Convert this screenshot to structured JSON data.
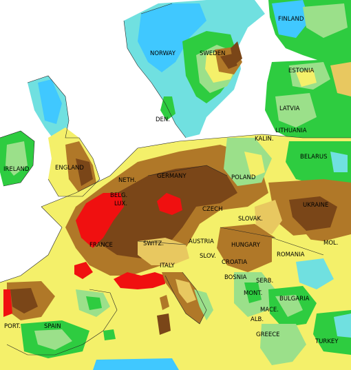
{
  "map": {
    "type": "anomaly-contour-map",
    "region": "Europe",
    "colors": {
      "sea": "#ffffff",
      "extreme_dry": "#f01010",
      "very_dry": "#7a4618",
      "dry": "#b07828",
      "slightly_dry": "#e8c860",
      "near_normal": "#f4f06a",
      "slightly_wet": "#9be08a",
      "wet": "#2ecc40",
      "very_wet": "#70e0e0",
      "extreme_wet": "#40c8ff"
    },
    "labels": [
      {
        "id": "finland",
        "text": "FINLAND"
      },
      {
        "id": "norway",
        "text": "NORWAY"
      },
      {
        "id": "sweden",
        "text": "SWEDEN"
      },
      {
        "id": "estonia",
        "text": "ESTONIA"
      },
      {
        "id": "latvia",
        "text": "LATVIA"
      },
      {
        "id": "lithuania",
        "text": "LITHUANIA"
      },
      {
        "id": "den",
        "text": "DEN."
      },
      {
        "id": "kalin",
        "text": "KALIN."
      },
      {
        "id": "belarus",
        "text": "BELARUS"
      },
      {
        "id": "ireland",
        "text": "IRELAND"
      },
      {
        "id": "england",
        "text": "ENGLAND"
      },
      {
        "id": "neth",
        "text": "NETH."
      },
      {
        "id": "germany",
        "text": "GERMANY"
      },
      {
        "id": "poland",
        "text": "POLAND"
      },
      {
        "id": "belg",
        "text": "BELG."
      },
      {
        "id": "lux",
        "text": "LUX."
      },
      {
        "id": "czech",
        "text": "CZECH"
      },
      {
        "id": "ukraine",
        "text": "UKRAINE"
      },
      {
        "id": "slovak",
        "text": "SLOVAK."
      },
      {
        "id": "mol",
        "text": "MOL."
      },
      {
        "id": "france",
        "text": "FRANCE"
      },
      {
        "id": "switz",
        "text": "SWITZ."
      },
      {
        "id": "austria",
        "text": "AUSTRIA"
      },
      {
        "id": "hungary",
        "text": "HUNGARY"
      },
      {
        "id": "romania",
        "text": "ROMANIA"
      },
      {
        "id": "slov",
        "text": "SLOV."
      },
      {
        "id": "croatia",
        "text": "CROATIA"
      },
      {
        "id": "italy",
        "text": "ITALY"
      },
      {
        "id": "bosnia",
        "text": "BOSNIA"
      },
      {
        "id": "serb",
        "text": "SERB."
      },
      {
        "id": "mont",
        "text": "MONT."
      },
      {
        "id": "bulgaria",
        "text": "BULGARIA"
      },
      {
        "id": "mace",
        "text": "MACE."
      },
      {
        "id": "alb",
        "text": "ALB."
      },
      {
        "id": "port",
        "text": "PORT."
      },
      {
        "id": "spain",
        "text": "SPAIN"
      },
      {
        "id": "greece",
        "text": "GREECE"
      },
      {
        "id": "turkey",
        "text": "TURKEY"
      }
    ]
  }
}
